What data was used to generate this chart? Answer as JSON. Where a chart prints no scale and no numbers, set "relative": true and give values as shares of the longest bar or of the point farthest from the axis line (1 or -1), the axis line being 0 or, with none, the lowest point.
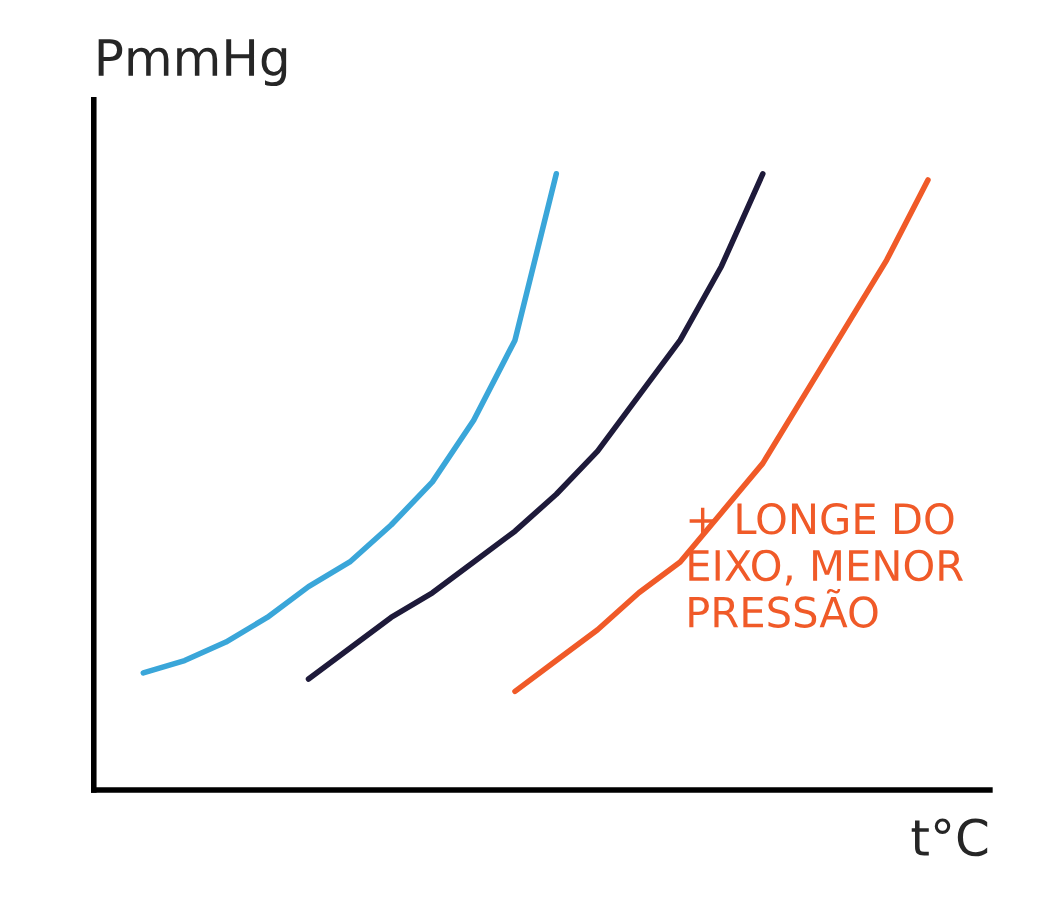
{
  "chart_data": {
    "type": "line",
    "relative": true,
    "xlabel": "t°C",
    "ylabel": "PmmHg",
    "categories": [
      null,
      null,
      null,
      null,
      null,
      null,
      null,
      null,
      null,
      null,
      null,
      null,
      null,
      null,
      null,
      null,
      null,
      null,
      null,
      null
    ],
    "series": [
      {
        "color": "#3aa6d9",
        "values": [
          0.19,
          0.21,
          0.24,
          0.28,
          0.33,
          0.37,
          0.43,
          0.5,
          0.6,
          0.73,
          1.0,
          null,
          null,
          null,
          null,
          null,
          null,
          null,
          null,
          null
        ]
      },
      {
        "color": "#1e1a3a",
        "values": [
          null,
          null,
          null,
          null,
          0.18,
          0.23,
          0.28,
          0.32,
          0.37,
          0.42,
          0.48,
          0.55,
          0.64,
          0.73,
          0.85,
          1.0,
          null,
          null,
          null,
          null
        ]
      },
      {
        "color": "#f05a28",
        "values": [
          null,
          null,
          null,
          null,
          null,
          null,
          null,
          null,
          null,
          0.16,
          0.21,
          0.26,
          0.32,
          0.37,
          0.45,
          0.53,
          0.64,
          0.75,
          0.86,
          0.99
        ]
      }
    ],
    "annotations": [
      "+ LONGE DO EIXO, MENOR PRESSÃO"
    ],
    "grid": false,
    "legend": false,
    "marker": "none",
    "line_style": "solid"
  }
}
